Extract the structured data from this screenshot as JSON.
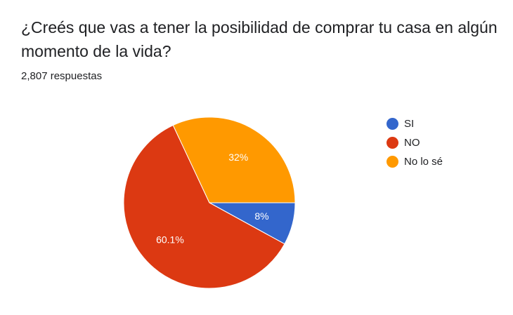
{
  "question": "¿Creés que vas a tener la posibilidad de comprar tu casa en algún momento de la vida?",
  "responses": "2,807 respuestas",
  "chart_data": {
    "type": "pie",
    "categories": [
      "SI",
      "NO",
      "No lo sé"
    ],
    "values": [
      8,
      60.1,
      32
    ],
    "labels": [
      "8%",
      "60.1%",
      "32%"
    ],
    "colors": [
      "#3366cc",
      "#dc3912",
      "#ff9900"
    ],
    "legend_position": "right"
  }
}
